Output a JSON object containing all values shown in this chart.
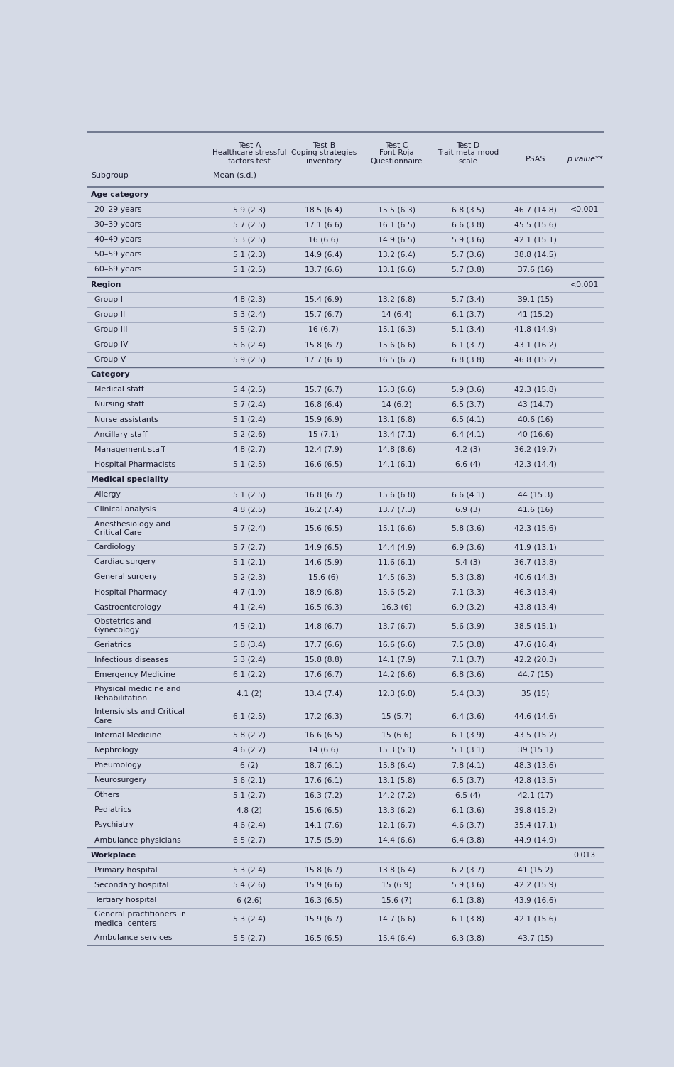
{
  "bg_color": "#d5dae6",
  "text_color": "#1a1a2e",
  "section_color": "#1a1a2e",
  "line_color": "#9098b0",
  "thick_line_color": "#606880",
  "rows": [
    {
      "label": "Age category",
      "indent": 0,
      "is_section": true,
      "vals": [
        "",
        "",
        "",
        "",
        "",
        ""
      ]
    },
    {
      "label": "20–29 years",
      "indent": 1,
      "is_section": false,
      "vals": [
        "5.9 (2.3)",
        "18.5 (6.4)",
        "15.5 (6.3)",
        "6.8 (3.5)",
        "46.7 (14.8)",
        "<0.001"
      ]
    },
    {
      "label": "30–39 years",
      "indent": 1,
      "is_section": false,
      "vals": [
        "5.7 (2.5)",
        "17.1 (6.6)",
        "16.1 (6.5)",
        "6.6 (3.8)",
        "45.5 (15.6)",
        ""
      ]
    },
    {
      "label": "40–49 years",
      "indent": 1,
      "is_section": false,
      "vals": [
        "5.3 (2.5)",
        "16 (6.6)",
        "14.9 (6.5)",
        "5.9 (3.6)",
        "42.1 (15.1)",
        ""
      ]
    },
    {
      "label": "50–59 years",
      "indent": 1,
      "is_section": false,
      "vals": [
        "5.1 (2.3)",
        "14.9 (6.4)",
        "13.2 (6.4)",
        "5.7 (3.6)",
        "38.8 (14.5)",
        ""
      ]
    },
    {
      "label": "60–69 years",
      "indent": 1,
      "is_section": false,
      "vals": [
        "5.1 (2.5)",
        "13.7 (6.6)",
        "13.1 (6.6)",
        "5.7 (3.8)",
        "37.6 (16)",
        ""
      ]
    },
    {
      "label": "Region",
      "indent": 0,
      "is_section": true,
      "vals": [
        "",
        "",
        "",
        "",
        "",
        "<0.001"
      ]
    },
    {
      "label": "Group I",
      "indent": 1,
      "is_section": false,
      "vals": [
        "4.8 (2.3)",
        "15.4 (6.9)",
        "13.2 (6.8)",
        "5.7 (3.4)",
        "39.1 (15)",
        ""
      ]
    },
    {
      "label": "Group II",
      "indent": 1,
      "is_section": false,
      "vals": [
        "5.3 (2.4)",
        "15.7 (6.7)",
        "14 (6.4)",
        "6.1 (3.7)",
        "41 (15.2)",
        ""
      ]
    },
    {
      "label": "Group III",
      "indent": 1,
      "is_section": false,
      "vals": [
        "5.5 (2.7)",
        "16 (6.7)",
        "15.1 (6.3)",
        "5.1 (3.4)",
        "41.8 (14.9)",
        ""
      ]
    },
    {
      "label": "Group IV",
      "indent": 1,
      "is_section": false,
      "vals": [
        "5.6 (2.4)",
        "15.8 (6.7)",
        "15.6 (6.6)",
        "6.1 (3.7)",
        "43.1 (16.2)",
        ""
      ]
    },
    {
      "label": "Group V",
      "indent": 1,
      "is_section": false,
      "vals": [
        "5.9 (2.5)",
        "17.7 (6.3)",
        "16.5 (6.7)",
        "6.8 (3.8)",
        "46.8 (15.2)",
        ""
      ]
    },
    {
      "label": "Category",
      "indent": 0,
      "is_section": true,
      "vals": [
        "",
        "",
        "",
        "",
        "",
        ""
      ]
    },
    {
      "label": "Medical staff",
      "indent": 1,
      "is_section": false,
      "vals": [
        "5.4 (2.5)",
        "15.7 (6.7)",
        "15.3 (6.6)",
        "5.9 (3.6)",
        "42.3 (15.8)",
        ""
      ]
    },
    {
      "label": "Nursing staff",
      "indent": 1,
      "is_section": false,
      "vals": [
        "5.7 (2.4)",
        "16.8 (6.4)",
        "14 (6.2)",
        "6.5 (3.7)",
        "43 (14.7)",
        ""
      ]
    },
    {
      "label": "Nurse assistants",
      "indent": 1,
      "is_section": false,
      "vals": [
        "5.1 (2.4)",
        "15.9 (6.9)",
        "13.1 (6.8)",
        "6.5 (4.1)",
        "40.6 (16)",
        ""
      ]
    },
    {
      "label": "Ancillary staff",
      "indent": 1,
      "is_section": false,
      "vals": [
        "5.2 (2.6)",
        "15 (7.1)",
        "13.4 (7.1)",
        "6.4 (4.1)",
        "40 (16.6)",
        ""
      ]
    },
    {
      "label": "Management staff",
      "indent": 1,
      "is_section": false,
      "vals": [
        "4.8 (2.7)",
        "12.4 (7.9)",
        "14.8 (8.6)",
        "4.2 (3)",
        "36.2 (19.7)",
        ""
      ]
    },
    {
      "label": "Hospital Pharmacists",
      "indent": 1,
      "is_section": false,
      "vals": [
        "5.1 (2.5)",
        "16.6 (6.5)",
        "14.1 (6.1)",
        "6.6 (4)",
        "42.3 (14.4)",
        ""
      ]
    },
    {
      "label": "Medical speciality",
      "indent": 0,
      "is_section": true,
      "vals": [
        "",
        "",
        "",
        "",
        "",
        ""
      ]
    },
    {
      "label": "Allergy",
      "indent": 1,
      "is_section": false,
      "vals": [
        "5.1 (2.5)",
        "16.8 (6.7)",
        "15.6 (6.8)",
        "6.6 (4.1)",
        "44 (15.3)",
        ""
      ]
    },
    {
      "label": "Clinical analysis",
      "indent": 1,
      "is_section": false,
      "vals": [
        "4.8 (2.5)",
        "16.2 (7.4)",
        "13.7 (7.3)",
        "6.9 (3)",
        "41.6 (16)",
        ""
      ]
    },
    {
      "label": "Anesthesiology and\nCritical Care",
      "indent": 1,
      "is_section": false,
      "vals": [
        "5.7 (2.4)",
        "15.6 (6.5)",
        "15.1 (6.6)",
        "5.8 (3.6)",
        "42.3 (15.6)",
        ""
      ]
    },
    {
      "label": "Cardiology",
      "indent": 1,
      "is_section": false,
      "vals": [
        "5.7 (2.7)",
        "14.9 (6.5)",
        "14.4 (4.9)",
        "6.9 (3.6)",
        "41.9 (13.1)",
        ""
      ]
    },
    {
      "label": "Cardiac surgery",
      "indent": 1,
      "is_section": false,
      "vals": [
        "5.1 (2.1)",
        "14.6 (5.9)",
        "11.6 (6.1)",
        "5.4 (3)",
        "36.7 (13.8)",
        ""
      ]
    },
    {
      "label": "General surgery",
      "indent": 1,
      "is_section": false,
      "vals": [
        "5.2 (2.3)",
        "15.6 (6)",
        "14.5 (6.3)",
        "5.3 (3.8)",
        "40.6 (14.3)",
        ""
      ]
    },
    {
      "label": "Hospital Pharmacy",
      "indent": 1,
      "is_section": false,
      "vals": [
        "4.7 (1.9)",
        "18.9 (6.8)",
        "15.6 (5.2)",
        "7.1 (3.3)",
        "46.3 (13.4)",
        ""
      ]
    },
    {
      "label": "Gastroenterology",
      "indent": 1,
      "is_section": false,
      "vals": [
        "4.1 (2.4)",
        "16.5 (6.3)",
        "16.3 (6)",
        "6.9 (3.2)",
        "43.8 (13.4)",
        ""
      ]
    },
    {
      "label": "Obstetrics and\nGynecology",
      "indent": 1,
      "is_section": false,
      "vals": [
        "4.5 (2.1)",
        "14.8 (6.7)",
        "13.7 (6.7)",
        "5.6 (3.9)",
        "38.5 (15.1)",
        ""
      ]
    },
    {
      "label": "Geriatrics",
      "indent": 1,
      "is_section": false,
      "vals": [
        "5.8 (3.4)",
        "17.7 (6.6)",
        "16.6 (6.6)",
        "7.5 (3.8)",
        "47.6 (16.4)",
        ""
      ]
    },
    {
      "label": "Infectious diseases",
      "indent": 1,
      "is_section": false,
      "vals": [
        "5.3 (2.4)",
        "15.8 (8.8)",
        "14.1 (7.9)",
        "7.1 (3.7)",
        "42.2 (20.3)",
        ""
      ]
    },
    {
      "label": "Emergency Medicine",
      "indent": 1,
      "is_section": false,
      "vals": [
        "6.1 (2.2)",
        "17.6 (6.7)",
        "14.2 (6.6)",
        "6.8 (3.6)",
        "44.7 (15)",
        ""
      ]
    },
    {
      "label": "Physical medicine and\nRehabilitation",
      "indent": 1,
      "is_section": false,
      "vals": [
        "4.1 (2)",
        "13.4 (7.4)",
        "12.3 (6.8)",
        "5.4 (3.3)",
        "35 (15)",
        ""
      ]
    },
    {
      "label": "Intensivists and Critical\nCare",
      "indent": 1,
      "is_section": false,
      "vals": [
        "6.1 (2.5)",
        "17.2 (6.3)",
        "15 (5.7)",
        "6.4 (3.6)",
        "44.6 (14.6)",
        ""
      ]
    },
    {
      "label": "Internal Medicine",
      "indent": 1,
      "is_section": false,
      "vals": [
        "5.8 (2.2)",
        "16.6 (6.5)",
        "15 (6.6)",
        "6.1 (3.9)",
        "43.5 (15.2)",
        ""
      ]
    },
    {
      "label": "Nephrology",
      "indent": 1,
      "is_section": false,
      "vals": [
        "4.6 (2.2)",
        "14 (6.6)",
        "15.3 (5.1)",
        "5.1 (3.1)",
        "39 (15.1)",
        ""
      ]
    },
    {
      "label": "Pneumology",
      "indent": 1,
      "is_section": false,
      "vals": [
        "6 (2)",
        "18.7 (6.1)",
        "15.8 (6.4)",
        "7.8 (4.1)",
        "48.3 (13.6)",
        ""
      ]
    },
    {
      "label": "Neurosurgery",
      "indent": 1,
      "is_section": false,
      "vals": [
        "5.6 (2.1)",
        "17.6 (6.1)",
        "13.1 (5.8)",
        "6.5 (3.7)",
        "42.8 (13.5)",
        ""
      ]
    },
    {
      "label": "Others",
      "indent": 1,
      "is_section": false,
      "vals": [
        "5.1 (2.7)",
        "16.3 (7.2)",
        "14.2 (7.2)",
        "6.5 (4)",
        "42.1 (17)",
        ""
      ]
    },
    {
      "label": "Pediatrics",
      "indent": 1,
      "is_section": false,
      "vals": [
        "4.8 (2)",
        "15.6 (6.5)",
        "13.3 (6.2)",
        "6.1 (3.6)",
        "39.8 (15.2)",
        ""
      ]
    },
    {
      "label": "Psychiatry",
      "indent": 1,
      "is_section": false,
      "vals": [
        "4.6 (2.4)",
        "14.1 (7.6)",
        "12.1 (6.7)",
        "4.6 (3.7)",
        "35.4 (17.1)",
        ""
      ]
    },
    {
      "label": "Ambulance physicians",
      "indent": 1,
      "is_section": false,
      "vals": [
        "6.5 (2.7)",
        "17.5 (5.9)",
        "14.4 (6.6)",
        "6.4 (3.8)",
        "44.9 (14.9)",
        ""
      ]
    },
    {
      "label": "Workplace",
      "indent": 0,
      "is_section": true,
      "vals": [
        "",
        "",
        "",
        "",
        "",
        "0.013"
      ]
    },
    {
      "label": "Primary hospital",
      "indent": 1,
      "is_section": false,
      "vals": [
        "5.3 (2.4)",
        "15.8 (6.7)",
        "13.8 (6.4)",
        "6.2 (3.7)",
        "41 (15.2)",
        ""
      ]
    },
    {
      "label": "Secondary hospital",
      "indent": 1,
      "is_section": false,
      "vals": [
        "5.4 (2.6)",
        "15.9 (6.6)",
        "15 (6.9)",
        "5.9 (3.6)",
        "42.2 (15.9)",
        ""
      ]
    },
    {
      "label": "Tertiary hospital",
      "indent": 1,
      "is_section": false,
      "vals": [
        "6 (2.6)",
        "16.3 (6.5)",
        "15.6 (7)",
        "6.1 (3.8)",
        "43.9 (16.6)",
        ""
      ]
    },
    {
      "label": "General practitioners in\nmedical centers",
      "indent": 1,
      "is_section": false,
      "vals": [
        "5.3 (2.4)",
        "15.9 (6.7)",
        "14.7 (6.6)",
        "6.1 (3.8)",
        "42.1 (15.6)",
        ""
      ]
    },
    {
      "label": "Ambulance services",
      "indent": 1,
      "is_section": false,
      "vals": [
        "5.5 (2.7)",
        "16.5 (6.5)",
        "15.4 (6.4)",
        "6.3 (3.8)",
        "43.7 (15)",
        ""
      ]
    }
  ]
}
